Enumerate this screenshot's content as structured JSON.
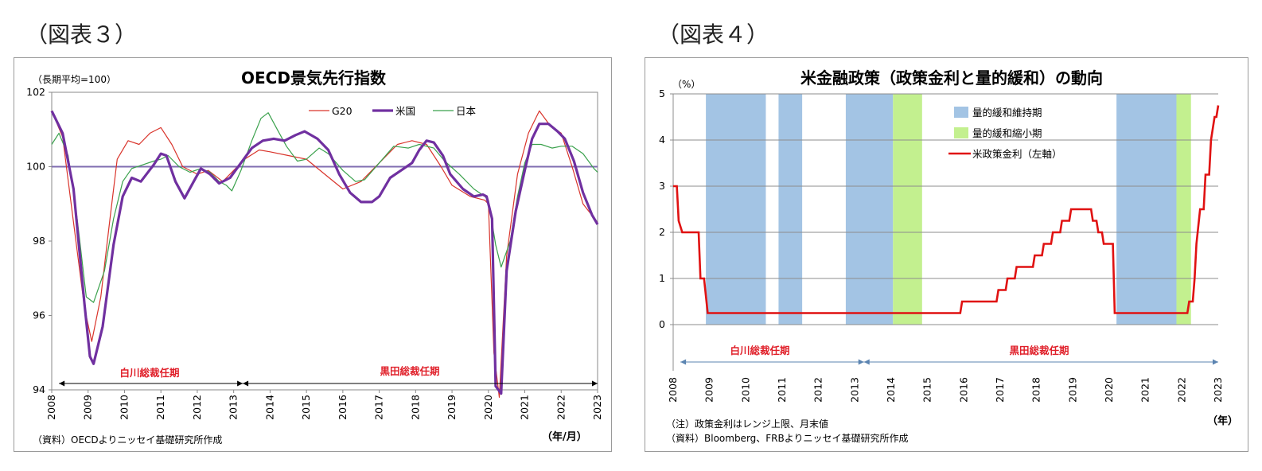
{
  "figures": {
    "left_label": "（図表３）",
    "right_label": "（図表４）"
  },
  "left": {
    "title": "OECD景気先行指数",
    "unit": "（長期平均=100）",
    "source": "（資料）OECDよりニッセイ基礎研究所作成",
    "xunit": "（年/月）",
    "term1": "白川総裁任期",
    "term2": "黒田総裁任期",
    "colors": {
      "G20": "#d9342b",
      "US": "#7030a0",
      "JP": "#3aa14c",
      "ref": "#7f6cb0",
      "arrow": "#000000"
    }
  },
  "right": {
    "title": "米金融政策（政策金利と量的緩和）の動向",
    "unit": "（%）",
    "note": "（注）政策金利はレンジ上限、月末値",
    "source": "（資料）Bloomberg、FRBよりニッセイ基礎研究所作成",
    "xunit": "（年）",
    "term1": "白川総裁任期",
    "term2": "黒田総裁任期",
    "colors": {
      "qe": "#a3c4e4",
      "taper": "#c3f08f",
      "rate": "#e01212",
      "arrow": "#5b84b1"
    }
  },
  "chart_data": [
    {
      "type": "line",
      "title": "OECD景気先行指数",
      "ylabel": "（長期平均=100）",
      "xlabel": "（年/月）",
      "ylim": [
        94,
        102
      ],
      "yticks": [
        94,
        96,
        98,
        100,
        102
      ],
      "xlim": [
        2008,
        2023
      ],
      "xticks": [
        "2008",
        "2009",
        "2010",
        "2011",
        "2012",
        "2013",
        "2014",
        "2015",
        "2016",
        "2017",
        "2018",
        "2019",
        "2020",
        "2021",
        "2022",
        "2023"
      ],
      "reference_line": 100,
      "legend_position": "top-center",
      "annotations": [
        {
          "text": "白川総裁任期",
          "from": 2008.2,
          "to": 2013.25
        },
        {
          "text": "黒田総裁任期",
          "from": 2013.25,
          "to": 2023.0
        }
      ],
      "series": [
        {
          "name": "G20",
          "color": "#d9342b",
          "width": 1.2,
          "points": [
            [
              2008.0,
              101.5
            ],
            [
              2008.3,
              100.8
            ],
            [
              2008.6,
              98.5
            ],
            [
              2008.9,
              96.2
            ],
            [
              2009.1,
              95.3
            ],
            [
              2009.35,
              96.5
            ],
            [
              2009.6,
              98.6
            ],
            [
              2009.8,
              100.2
            ],
            [
              2010.1,
              100.7
            ],
            [
              2010.4,
              100.6
            ],
            [
              2010.7,
              100.9
            ],
            [
              2011.0,
              101.05
            ],
            [
              2011.3,
              100.6
            ],
            [
              2011.6,
              100.0
            ],
            [
              2012.0,
              99.8
            ],
            [
              2012.3,
              99.9
            ],
            [
              2012.7,
              99.6
            ],
            [
              2013.0,
              99.9
            ],
            [
              2013.3,
              100.2
            ],
            [
              2013.7,
              100.45
            ],
            [
              2014.0,
              100.4
            ],
            [
              2014.5,
              100.3
            ],
            [
              2015.0,
              100.2
            ],
            [
              2015.5,
              99.8
            ],
            [
              2016.0,
              99.4
            ],
            [
              2016.5,
              99.6
            ],
            [
              2017.0,
              100.1
            ],
            [
              2017.5,
              100.6
            ],
            [
              2017.9,
              100.7
            ],
            [
              2018.3,
              100.6
            ],
            [
              2018.7,
              100.0
            ],
            [
              2019.0,
              99.5
            ],
            [
              2019.5,
              99.2
            ],
            [
              2019.9,
              99.1
            ],
            [
              2020.0,
              99.0
            ],
            [
              2020.15,
              95.0
            ],
            [
              2020.3,
              93.8
            ],
            [
              2020.5,
              97.6
            ],
            [
              2020.8,
              99.8
            ],
            [
              2021.1,
              100.9
            ],
            [
              2021.4,
              101.5
            ],
            [
              2021.7,
              101.1
            ],
            [
              2022.0,
              100.9
            ],
            [
              2022.3,
              100.0
            ],
            [
              2022.6,
              99.0
            ],
            [
              2023.0,
              98.5
            ]
          ]
        },
        {
          "name": "米国",
          "color": "#7030a0",
          "width": 3.2,
          "points": [
            [
              2008.0,
              101.5
            ],
            [
              2008.3,
              100.9
            ],
            [
              2008.6,
              99.4
            ],
            [
              2008.9,
              96.3
            ],
            [
              2009.05,
              94.9
            ],
            [
              2009.15,
              94.7
            ],
            [
              2009.4,
              95.7
            ],
            [
              2009.7,
              97.9
            ],
            [
              2009.95,
              99.2
            ],
            [
              2010.2,
              99.7
            ],
            [
              2010.45,
              99.6
            ],
            [
              2010.8,
              100.05
            ],
            [
              2011.0,
              100.35
            ],
            [
              2011.15,
              100.3
            ],
            [
              2011.4,
              99.6
            ],
            [
              2011.65,
              99.15
            ],
            [
              2011.9,
              99.6
            ],
            [
              2012.1,
              99.95
            ],
            [
              2012.35,
              99.8
            ],
            [
              2012.6,
              99.55
            ],
            [
              2012.9,
              99.7
            ],
            [
              2013.2,
              100.1
            ],
            [
              2013.5,
              100.5
            ],
            [
              2013.8,
              100.7
            ],
            [
              2014.1,
              100.75
            ],
            [
              2014.4,
              100.7
            ],
            [
              2014.7,
              100.85
            ],
            [
              2014.95,
              100.95
            ],
            [
              2015.3,
              100.75
            ],
            [
              2015.6,
              100.45
            ],
            [
              2015.9,
              99.8
            ],
            [
              2016.2,
              99.3
            ],
            [
              2016.5,
              99.05
            ],
            [
              2016.8,
              99.05
            ],
            [
              2017.0,
              99.2
            ],
            [
              2017.3,
              99.7
            ],
            [
              2017.6,
              99.9
            ],
            [
              2017.9,
              100.1
            ],
            [
              2018.1,
              100.45
            ],
            [
              2018.3,
              100.7
            ],
            [
              2018.5,
              100.65
            ],
            [
              2018.75,
              100.3
            ],
            [
              2018.95,
              99.8
            ],
            [
              2019.3,
              99.4
            ],
            [
              2019.6,
              99.2
            ],
            [
              2019.85,
              99.25
            ],
            [
              2019.95,
              99.2
            ],
            [
              2020.1,
              98.6
            ],
            [
              2020.2,
              94.1
            ],
            [
              2020.35,
              93.9
            ],
            [
              2020.5,
              97.2
            ],
            [
              2020.75,
              98.8
            ],
            [
              2021.0,
              99.9
            ],
            [
              2021.2,
              100.75
            ],
            [
              2021.4,
              101.15
            ],
            [
              2021.65,
              101.15
            ],
            [
              2021.9,
              100.95
            ],
            [
              2022.1,
              100.75
            ],
            [
              2022.35,
              100.15
            ],
            [
              2022.6,
              99.3
            ],
            [
              2022.85,
              98.7
            ],
            [
              2023.0,
              98.45
            ]
          ]
        },
        {
          "name": "日本",
          "color": "#3aa14c",
          "width": 1.2,
          "points": [
            [
              2008.0,
              100.6
            ],
            [
              2008.2,
              100.9
            ],
            [
              2008.45,
              100.3
            ],
            [
              2008.7,
              98.6
            ],
            [
              2008.95,
              96.5
            ],
            [
              2009.15,
              96.35
            ],
            [
              2009.45,
              97.2
            ],
            [
              2009.7,
              98.6
            ],
            [
              2009.95,
              99.6
            ],
            [
              2010.2,
              99.95
            ],
            [
              2010.5,
              100.05
            ],
            [
              2010.8,
              100.15
            ],
            [
              2011.0,
              100.2
            ],
            [
              2011.2,
              100.3
            ],
            [
              2011.5,
              100.0
            ],
            [
              2011.8,
              99.85
            ],
            [
              2012.1,
              99.95
            ],
            [
              2012.35,
              99.85
            ],
            [
              2012.6,
              99.6
            ],
            [
              2012.8,
              99.5
            ],
            [
              2012.95,
              99.35
            ],
            [
              2013.2,
              99.9
            ],
            [
              2013.5,
              100.7
            ],
            [
              2013.75,
              101.3
            ],
            [
              2013.95,
              101.45
            ],
            [
              2014.2,
              101.0
            ],
            [
              2014.45,
              100.55
            ],
            [
              2014.75,
              100.15
            ],
            [
              2015.0,
              100.2
            ],
            [
              2015.35,
              100.5
            ],
            [
              2015.6,
              100.35
            ],
            [
              2016.0,
              99.9
            ],
            [
              2016.35,
              99.6
            ],
            [
              2016.6,
              99.65
            ],
            [
              2017.0,
              100.1
            ],
            [
              2017.4,
              100.55
            ],
            [
              2017.8,
              100.5
            ],
            [
              2018.1,
              100.6
            ],
            [
              2018.5,
              100.5
            ],
            [
              2018.8,
              100.15
            ],
            [
              2019.2,
              99.8
            ],
            [
              2019.6,
              99.4
            ],
            [
              2019.9,
              99.2
            ],
            [
              2020.0,
              99.1
            ],
            [
              2020.2,
              97.9
            ],
            [
              2020.35,
              97.3
            ],
            [
              2020.6,
              98.0
            ],
            [
              2020.8,
              99.2
            ],
            [
              2021.0,
              100.1
            ],
            [
              2021.2,
              100.6
            ],
            [
              2021.45,
              100.6
            ],
            [
              2021.75,
              100.5
            ],
            [
              2022.0,
              100.55
            ],
            [
              2022.3,
              100.55
            ],
            [
              2022.6,
              100.35
            ],
            [
              2022.9,
              99.95
            ],
            [
              2023.0,
              99.85
            ]
          ]
        }
      ]
    },
    {
      "type": "line",
      "title": "米金融政策（政策金利と量的緩和）の動向",
      "ylabel": "（%）",
      "xlabel": "（年）",
      "ylim": [
        -1,
        5
      ],
      "yticks": [
        0,
        1,
        2,
        3,
        4,
        5
      ],
      "xlim": [
        2008,
        2023
      ],
      "xticks": [
        "2008",
        "2009",
        "2010",
        "2011",
        "2012",
        "2013",
        "2014",
        "2015",
        "2016",
        "2017",
        "2018",
        "2019",
        "2020",
        "2021",
        "2022",
        "2023"
      ],
      "legend_position": "top-center",
      "legend": [
        {
          "name": "量的緩和維持期",
          "color": "#a3c4e4",
          "kind": "box"
        },
        {
          "name": "量的緩和縮小期",
          "color": "#c3f08f",
          "kind": "box"
        },
        {
          "name": "米政策金利（左軸）",
          "color": "#e01212",
          "kind": "line"
        }
      ],
      "shaded_periods": [
        {
          "kind": "量的緩和維持期",
          "from": 2008.9,
          "to": 2010.55
        },
        {
          "kind": "量的緩和維持期",
          "from": 2010.9,
          "to": 2011.55
        },
        {
          "kind": "量的緩和維持期",
          "from": 2012.75,
          "to": 2014.05
        },
        {
          "kind": "量的緩和縮小期",
          "from": 2014.05,
          "to": 2014.85
        },
        {
          "kind": "量的緩和維持期",
          "from": 2020.2,
          "to": 2021.85
        },
        {
          "kind": "量的緩和縮小期",
          "from": 2021.85,
          "to": 2022.25
        }
      ],
      "annotations": [
        {
          "text": "白川総裁任期",
          "from": 2008.2,
          "to": 2013.25
        },
        {
          "text": "黒田総裁任期",
          "from": 2013.25,
          "to": 2023.0
        }
      ],
      "series": [
        {
          "name": "米政策金利（左軸）",
          "color": "#e01212",
          "width": 2.6,
          "points": [
            [
              2008.0,
              3.0
            ],
            [
              2008.1,
              3.0
            ],
            [
              2008.15,
              2.25
            ],
            [
              2008.25,
              2.0
            ],
            [
              2008.7,
              2.0
            ],
            [
              2008.75,
              1.0
            ],
            [
              2008.85,
              1.0
            ],
            [
              2008.95,
              0.25
            ],
            [
              2015.9,
              0.25
            ],
            [
              2015.95,
              0.5
            ],
            [
              2016.9,
              0.5
            ],
            [
              2016.95,
              0.75
            ],
            [
              2017.15,
              0.75
            ],
            [
              2017.2,
              1.0
            ],
            [
              2017.4,
              1.0
            ],
            [
              2017.45,
              1.25
            ],
            [
              2017.9,
              1.25
            ],
            [
              2017.95,
              1.5
            ],
            [
              2018.15,
              1.5
            ],
            [
              2018.2,
              1.75
            ],
            [
              2018.4,
              1.75
            ],
            [
              2018.45,
              2.0
            ],
            [
              2018.65,
              2.0
            ],
            [
              2018.7,
              2.25
            ],
            [
              2018.9,
              2.25
            ],
            [
              2018.95,
              2.5
            ],
            [
              2019.5,
              2.5
            ],
            [
              2019.55,
              2.25
            ],
            [
              2019.65,
              2.25
            ],
            [
              2019.7,
              2.0
            ],
            [
              2019.8,
              2.0
            ],
            [
              2019.85,
              1.75
            ],
            [
              2020.1,
              1.75
            ],
            [
              2020.15,
              0.25
            ],
            [
              2022.15,
              0.25
            ],
            [
              2022.2,
              0.5
            ],
            [
              2022.3,
              0.5
            ],
            [
              2022.35,
              1.0
            ],
            [
              2022.4,
              1.75
            ],
            [
              2022.5,
              2.5
            ],
            [
              2022.6,
              2.5
            ],
            [
              2022.65,
              3.25
            ],
            [
              2022.75,
              3.25
            ],
            [
              2022.8,
              4.0
            ],
            [
              2022.9,
              4.5
            ],
            [
              2022.95,
              4.5
            ],
            [
              2023.0,
              4.75
            ]
          ]
        }
      ]
    }
  ]
}
